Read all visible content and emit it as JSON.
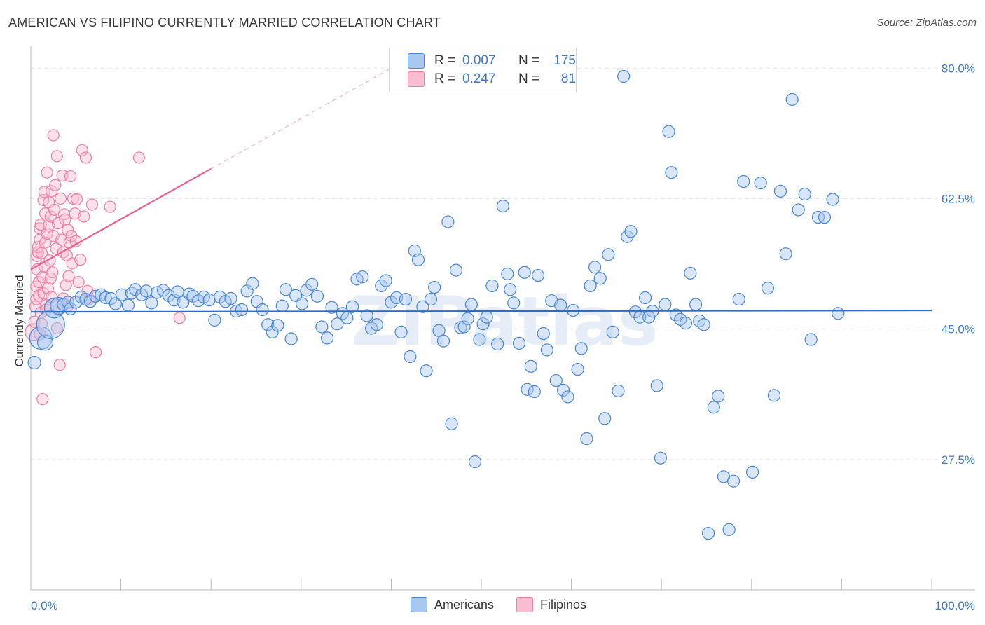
{
  "title": "AMERICAN VS FILIPINO CURRENTLY MARRIED CORRELATION CHART",
  "source": "Source: ZipAtlas.com",
  "watermark": "ZIPatlas",
  "legend": {
    "rows": [
      {
        "r_label": "R =",
        "r_value": "0.007",
        "n_label": "N =",
        "n_value": "175",
        "color": "#7aaee8"
      },
      {
        "r_label": "R =",
        "r_value": "0.247",
        "n_label": "N =",
        "n_value": "81",
        "color": "#f59ab5"
      }
    ]
  },
  "bottom_legend": {
    "americans": "Americans",
    "filipinos": "Filipinos"
  },
  "colors": {
    "blue_fill": "#a8c8f0",
    "blue_stroke": "#4a86d4",
    "blue_line": "#2b6ccc",
    "pink_fill": "#f8bdd0",
    "pink_stroke": "#ec7fa3",
    "pink_line": "#e8608c",
    "axis_label": "#3f78c4",
    "grid": "#e4e4e4"
  },
  "chart_data": {
    "type": "scatter",
    "title": "AMERICAN VS FILIPINO CURRENTLY MARRIED CORRELATION CHART",
    "xlabel": "",
    "ylabel": "Currently Married",
    "x_ticks": [
      "0.0%",
      "100.0%"
    ],
    "y_ticks": [
      "27.5%",
      "45.0%",
      "62.5%",
      "80.0%"
    ],
    "y_tick_values": [
      27.5,
      45.0,
      62.5,
      80.0
    ],
    "xlim": [
      0,
      100
    ],
    "ylim": [
      10,
      82
    ],
    "grid": true,
    "series": [
      {
        "name": "Americans",
        "trend": {
          "x": [
            0,
            100
          ],
          "y": [
            47.3,
            47.5
          ]
        },
        "points": [
          [
            0.4,
            40.5
          ],
          [
            1.1,
            43.8
          ],
          [
            1.6,
            43.2
          ],
          [
            2.2,
            45.6
          ],
          [
            2.6,
            47.8
          ],
          [
            3.1,
            48.1
          ],
          [
            3.6,
            48.3
          ],
          [
            4.1,
            48.6
          ],
          [
            4.4,
            47.7
          ],
          [
            5.0,
            48.6
          ],
          [
            5.6,
            49.3
          ],
          [
            6.1,
            49.0
          ],
          [
            6.6,
            48.7
          ],
          [
            7.2,
            49.4
          ],
          [
            7.8,
            49.6
          ],
          [
            8.3,
            49.2
          ],
          [
            8.9,
            49.1
          ],
          [
            9.4,
            48.4
          ],
          [
            10.1,
            49.6
          ],
          [
            10.8,
            48.2
          ],
          [
            11.2,
            49.8
          ],
          [
            11.6,
            50.3
          ],
          [
            12.3,
            49.6
          ],
          [
            12.8,
            50.1
          ],
          [
            13.4,
            48.5
          ],
          [
            14.0,
            49.9
          ],
          [
            14.7,
            50.2
          ],
          [
            15.3,
            49.5
          ],
          [
            15.9,
            48.9
          ],
          [
            16.3,
            50.0
          ],
          [
            16.9,
            48.6
          ],
          [
            17.6,
            49.7
          ],
          [
            18.0,
            49.4
          ],
          [
            18.6,
            48.8
          ],
          [
            19.2,
            49.3
          ],
          [
            19.8,
            48.9
          ],
          [
            20.4,
            46.2
          ],
          [
            21.0,
            49.3
          ],
          [
            21.6,
            48.7
          ],
          [
            22.2,
            49.1
          ],
          [
            22.8,
            47.4
          ],
          [
            23.4,
            47.6
          ],
          [
            24.0,
            50.1
          ],
          [
            24.6,
            51.1
          ],
          [
            25.1,
            48.7
          ],
          [
            25.7,
            47.6
          ],
          [
            26.3,
            45.6
          ],
          [
            26.8,
            44.6
          ],
          [
            27.4,
            45.5
          ],
          [
            27.9,
            48.1
          ],
          [
            28.3,
            50.3
          ],
          [
            28.9,
            43.7
          ],
          [
            29.4,
            49.5
          ],
          [
            30.1,
            48.4
          ],
          [
            30.6,
            50.2
          ],
          [
            31.2,
            51.0
          ],
          [
            31.8,
            49.4
          ],
          [
            32.3,
            45.3
          ],
          [
            32.9,
            43.8
          ],
          [
            33.4,
            47.9
          ],
          [
            34.0,
            45.7
          ],
          [
            34.6,
            47.1
          ],
          [
            35.1,
            46.5
          ],
          [
            35.7,
            48.0
          ],
          [
            36.2,
            51.7
          ],
          [
            36.8,
            52.0
          ],
          [
            37.3,
            46.8
          ],
          [
            37.8,
            45.1
          ],
          [
            38.4,
            45.6
          ],
          [
            38.9,
            50.8
          ],
          [
            39.4,
            51.5
          ],
          [
            40.0,
            48.6
          ],
          [
            40.6,
            49.2
          ],
          [
            41.1,
            44.6
          ],
          [
            41.6,
            49.0
          ],
          [
            42.1,
            41.3
          ],
          [
            42.6,
            55.5
          ],
          [
            43.0,
            54.3
          ],
          [
            43.5,
            48.0
          ],
          [
            43.9,
            39.4
          ],
          [
            44.4,
            49.0
          ],
          [
            44.8,
            50.6
          ],
          [
            45.3,
            44.8
          ],
          [
            45.8,
            43.4
          ],
          [
            46.3,
            59.4
          ],
          [
            46.7,
            32.3
          ],
          [
            47.2,
            52.9
          ],
          [
            47.7,
            45.2
          ],
          [
            48.1,
            45.3
          ],
          [
            48.5,
            46.4
          ],
          [
            48.9,
            48.3
          ],
          [
            49.3,
            27.2
          ],
          [
            49.8,
            43.6
          ],
          [
            50.2,
            45.7
          ],
          [
            50.6,
            46.6
          ],
          [
            51.2,
            50.8
          ],
          [
            51.8,
            43.0
          ],
          [
            52.4,
            61.5
          ],
          [
            52.9,
            52.4
          ],
          [
            53.2,
            50.3
          ],
          [
            53.6,
            48.5
          ],
          [
            54.2,
            43.1
          ],
          [
            54.8,
            52.6
          ],
          [
            55.1,
            36.9
          ],
          [
            55.5,
            40.0
          ],
          [
            55.9,
            36.6
          ],
          [
            56.3,
            52.2
          ],
          [
            56.9,
            44.4
          ],
          [
            57.3,
            42.2
          ],
          [
            57.8,
            48.8
          ],
          [
            58.3,
            38.1
          ],
          [
            58.8,
            48.2
          ],
          [
            59.1,
            36.8
          ],
          [
            59.6,
            35.9
          ],
          [
            60.2,
            47.5
          ],
          [
            60.7,
            39.6
          ],
          [
            61.1,
            42.4
          ],
          [
            61.7,
            30.3
          ],
          [
            62.1,
            50.8
          ],
          [
            62.6,
            53.3
          ],
          [
            63.2,
            51.8
          ],
          [
            63.7,
            33.0
          ],
          [
            64.1,
            55.0
          ],
          [
            64.6,
            44.6
          ],
          [
            65.2,
            36.7
          ],
          [
            65.8,
            78.9
          ],
          [
            66.2,
            57.4
          ],
          [
            66.6,
            58.1
          ],
          [
            67.1,
            47.3
          ],
          [
            67.6,
            46.6
          ],
          [
            68.2,
            49.2
          ],
          [
            68.6,
            46.6
          ],
          [
            69.0,
            47.4
          ],
          [
            69.5,
            37.4
          ],
          [
            69.9,
            27.7
          ],
          [
            70.4,
            48.3
          ],
          [
            70.8,
            71.5
          ],
          [
            71.1,
            66.0
          ],
          [
            71.6,
            46.9
          ],
          [
            72.1,
            46.3
          ],
          [
            72.7,
            45.8
          ],
          [
            73.2,
            52.5
          ],
          [
            73.8,
            48.3
          ],
          [
            74.2,
            46.1
          ],
          [
            74.7,
            45.6
          ],
          [
            75.2,
            17.6
          ],
          [
            75.8,
            34.5
          ],
          [
            76.3,
            36.0
          ],
          [
            76.9,
            25.2
          ],
          [
            77.5,
            18.1
          ],
          [
            78.0,
            24.6
          ],
          [
            78.6,
            49.0
          ],
          [
            79.1,
            64.8
          ],
          [
            80.1,
            25.8
          ],
          [
            81.0,
            64.6
          ],
          [
            81.8,
            50.5
          ],
          [
            82.5,
            36.1
          ],
          [
            83.2,
            63.5
          ],
          [
            83.8,
            55.1
          ],
          [
            84.5,
            75.8
          ],
          [
            85.2,
            61.0
          ],
          [
            85.9,
            63.1
          ],
          [
            86.6,
            43.6
          ],
          [
            87.4,
            60.0
          ],
          [
            88.1,
            60.0
          ],
          [
            89.0,
            62.4
          ],
          [
            89.6,
            47.1
          ]
        ]
      },
      {
        "name": "Filipinos",
        "trend": {
          "x": [
            0,
            20
          ],
          "y": [
            53.0,
            66.5
          ]
        },
        "points": [
          [
            0.3,
            44.6
          ],
          [
            0.4,
            46.0
          ],
          [
            0.5,
            48.0
          ],
          [
            0.6,
            49.0
          ],
          [
            0.6,
            50.7
          ],
          [
            0.7,
            53.0
          ],
          [
            0.7,
            54.8
          ],
          [
            0.8,
            55.3
          ],
          [
            0.8,
            56.0
          ],
          [
            0.9,
            49.5
          ],
          [
            0.9,
            51.3
          ],
          [
            1.0,
            57.0
          ],
          [
            1.0,
            58.5
          ],
          [
            1.1,
            59.0
          ],
          [
            1.1,
            47.2
          ],
          [
            1.2,
            45.7
          ],
          [
            1.2,
            55.2
          ],
          [
            1.3,
            52.0
          ],
          [
            1.4,
            49.8
          ],
          [
            1.4,
            62.3
          ],
          [
            1.5,
            63.4
          ],
          [
            1.5,
            53.4
          ],
          [
            1.6,
            56.6
          ],
          [
            1.6,
            60.5
          ],
          [
            1.7,
            48.2
          ],
          [
            1.8,
            66.0
          ],
          [
            1.8,
            57.8
          ],
          [
            1.9,
            50.5
          ],
          [
            2.0,
            62.0
          ],
          [
            2.0,
            58.9
          ],
          [
            2.1,
            54.2
          ],
          [
            2.2,
            60.1
          ],
          [
            2.3,
            63.5
          ],
          [
            2.3,
            49.3
          ],
          [
            2.4,
            52.6
          ],
          [
            2.5,
            71.0
          ],
          [
            2.5,
            57.5
          ],
          [
            2.6,
            61.0
          ],
          [
            2.7,
            64.3
          ],
          [
            2.8,
            55.8
          ],
          [
            2.9,
            68.2
          ],
          [
            3.0,
            59.2
          ],
          [
            3.1,
            47.6
          ],
          [
            3.2,
            40.2
          ],
          [
            3.3,
            62.5
          ],
          [
            3.4,
            57.0
          ],
          [
            3.5,
            65.6
          ],
          [
            3.6,
            55.3
          ],
          [
            3.7,
            60.4
          ],
          [
            3.8,
            59.7
          ],
          [
            3.9,
            50.9
          ],
          [
            4.0,
            54.9
          ],
          [
            4.1,
            58.3
          ],
          [
            4.2,
            52.1
          ],
          [
            4.3,
            56.6
          ],
          [
            4.4,
            65.5
          ],
          [
            4.5,
            57.5
          ],
          [
            4.6,
            53.8
          ],
          [
            4.7,
            62.5
          ],
          [
            4.9,
            60.5
          ],
          [
            5.0,
            56.8
          ],
          [
            5.1,
            62.4
          ],
          [
            5.3,
            51.3
          ],
          [
            5.5,
            54.3
          ],
          [
            5.7,
            69.0
          ],
          [
            5.9,
            60.1
          ],
          [
            6.1,
            68.0
          ],
          [
            6.3,
            50.1
          ],
          [
            6.5,
            49.0
          ],
          [
            6.8,
            61.7
          ],
          [
            7.2,
            41.9
          ],
          [
            1.3,
            35.6
          ],
          [
            1.0,
            44.3
          ],
          [
            1.7,
            47.6
          ],
          [
            2.2,
            51.8
          ],
          [
            2.9,
            45.1
          ],
          [
            3.6,
            49.1
          ],
          [
            4.1,
            48.1
          ],
          [
            12.0,
            68.0
          ],
          [
            16.5,
            46.5
          ],
          [
            8.8,
            61.4
          ]
        ]
      }
    ]
  }
}
